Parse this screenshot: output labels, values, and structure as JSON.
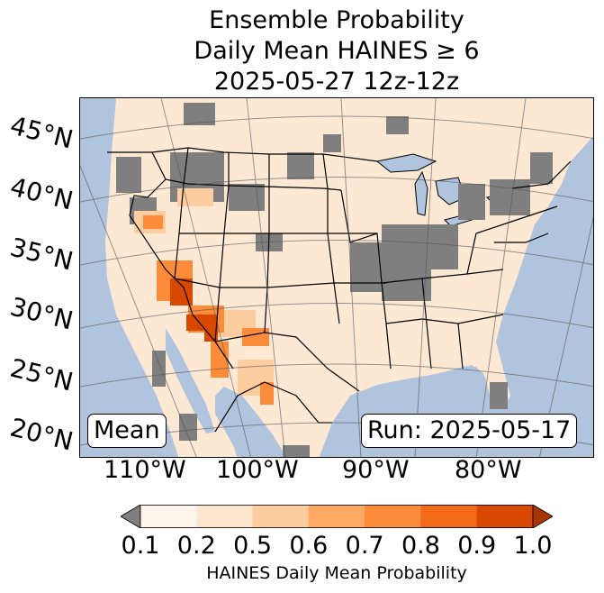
{
  "title": {
    "line1": "Ensemble Probability",
    "line2": "Daily Mean HAINES ≥ 6",
    "line3": "2025-05-27 12z-12z"
  },
  "map": {
    "latitude_labels": [
      "45°N",
      "40°N",
      "35°N",
      "30°N",
      "25°N",
      "20°N"
    ],
    "longitude_labels": [
      "110°W",
      "100°W",
      "90°W",
      "80°W"
    ],
    "ocean_color": "#b0c4de",
    "land_color": "#fde9d3",
    "masked_color": "#7f7f7f"
  },
  "annotations": {
    "stat": "Mean",
    "run": "Run: 2025-05-17"
  },
  "colorbar": {
    "label": "HAINES Daily Mean Probability",
    "ticks": [
      "0.1",
      "0.2",
      "0.5",
      "0.6",
      "0.7",
      "0.8",
      "0.9",
      "1.0"
    ],
    "colors": [
      "#fff5eb",
      "#fde6cd",
      "#fdcc9f",
      "#fda863",
      "#fc8b3a",
      "#f06a17",
      "#d94801"
    ],
    "under_color": "#7f7f7f",
    "over_color": "#a63603"
  }
}
